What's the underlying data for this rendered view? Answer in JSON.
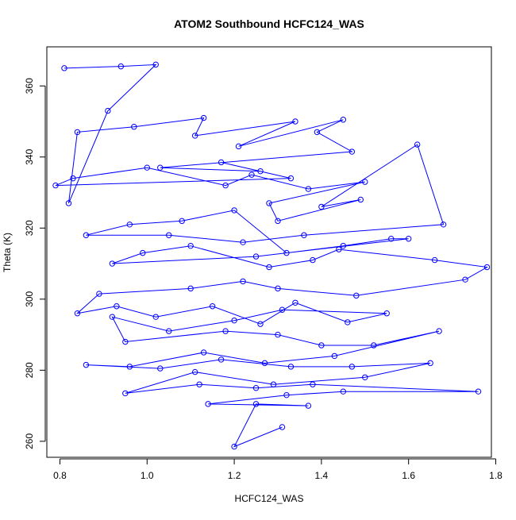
{
  "chart_data": {
    "type": "line",
    "title": "ATOM2 Southbound HCFC124_WAS",
    "xlabel": "HCFC124_WAS",
    "ylabel": "Theta (K)",
    "xlim": [
      0.77,
      1.79
    ],
    "ylim": [
      255.5,
      371
    ],
    "x_ticks": [
      0.8,
      1.0,
      1.2,
      1.4,
      1.6,
      1.8
    ],
    "x_tick_labels": [
      "0.8",
      "1.0",
      "1.2",
      "1.4",
      "1.6",
      "1.8"
    ],
    "y_ticks": [
      260,
      280,
      300,
      320,
      340,
      360
    ],
    "y_tick_labels": [
      "260",
      "280",
      "300",
      "320",
      "340",
      "360"
    ],
    "marker": "open-circle",
    "grid": false,
    "legend": "none",
    "series_color": "#0000FF",
    "series": [
      {
        "x": [
          0.81,
          0.94,
          1.02,
          0.91,
          0.82,
          0.84,
          0.97,
          1.13,
          1.11,
          1.34,
          1.21,
          1.45,
          1.39,
          1.47,
          1.03,
          1.26,
          1.17,
          1.33,
          0.79,
          0.83,
          1.0,
          1.18,
          1.24,
          1.37,
          1.5,
          1.28,
          1.3,
          1.49,
          1.4,
          1.62,
          1.68,
          1.36,
          1.22,
          1.05,
          0.86,
          0.96,
          1.08,
          1.2,
          1.32,
          1.45,
          1.56,
          1.6,
          1.25,
          0.92,
          0.99,
          1.1,
          1.28,
          1.38,
          1.44,
          1.66,
          1.78,
          1.73,
          1.48,
          1.3,
          1.22,
          1.1,
          0.89,
          0.84,
          0.93,
          1.02,
          1.15,
          1.26,
          1.34,
          1.46,
          1.55,
          1.31,
          1.2,
          1.05,
          0.92,
          0.95,
          1.18,
          1.3,
          1.4,
          1.52,
          1.67,
          1.43,
          1.27,
          1.13,
          0.96,
          0.86,
          1.03,
          1.17,
          1.33,
          1.47,
          1.65,
          1.5,
          1.29,
          1.11,
          0.95,
          1.12,
          1.25,
          1.38,
          1.76,
          1.45,
          1.32,
          1.14,
          1.37,
          1.25,
          1.2,
          1.31
        ],
        "y": [
          365,
          365.5,
          366,
          353,
          327,
          347,
          348.5,
          351,
          346,
          350,
          343,
          350.5,
          347,
          341.5,
          337,
          336,
          338.5,
          334,
          332,
          334,
          337,
          332,
          335,
          331,
          333,
          327,
          322,
          328,
          326,
          343.5,
          321,
          318,
          316,
          318,
          318,
          321,
          322,
          325,
          313,
          315,
          317,
          317,
          312,
          310,
          313,
          315,
          309,
          311,
          314,
          311,
          309,
          305.5,
          301,
          303,
          305,
          303,
          301.5,
          296,
          298,
          295,
          298,
          293,
          299,
          293.5,
          296,
          297,
          294,
          291,
          295,
          288,
          291,
          290,
          287,
          287,
          291,
          284,
          282,
          285,
          281,
          281.5,
          280.5,
          283,
          281,
          281,
          282,
          278,
          276,
          279.5,
          273.5,
          276,
          275,
          276,
          274,
          274,
          273,
          270.5,
          270,
          270.5,
          258.5,
          264
        ]
      }
    ]
  }
}
